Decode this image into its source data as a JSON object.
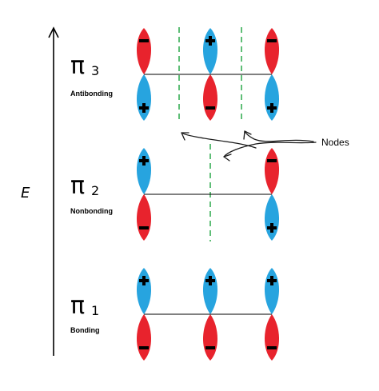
{
  "energy_label": "E",
  "levels": [
    {
      "symbol": "π",
      "index": "3",
      "name": "Antibonding",
      "lobes": [
        {
          "upper": "red",
          "lower": "blue"
        },
        {
          "upper": "blue",
          "lower": "red"
        },
        {
          "upper": "red",
          "lower": "blue"
        }
      ]
    },
    {
      "symbol": "π",
      "index": "2",
      "name": "Nonbonding",
      "lobes": [
        {
          "upper": "blue",
          "lower": "red"
        },
        {
          "upper": "none",
          "lower": "none"
        },
        {
          "upper": "red",
          "lower": "blue"
        }
      ]
    },
    {
      "symbol": "π",
      "index": "1",
      "name": "Bonding",
      "lobes": [
        {
          "upper": "blue",
          "lower": "red"
        },
        {
          "upper": "blue",
          "lower": "red"
        },
        {
          "upper": "blue",
          "lower": "red"
        }
      ]
    }
  ],
  "nodes_label": "Nodes",
  "colors": {
    "red": "#e8232d",
    "blue": "#27a4df",
    "node_line": "#2aa84a",
    "sign": "#000000"
  }
}
